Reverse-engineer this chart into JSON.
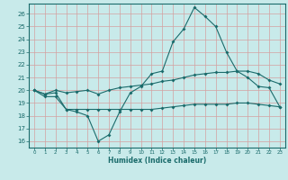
{
  "title": "",
  "xlabel": "Humidex (Indice chaleur)",
  "bg_color": "#c8eaea",
  "line_color": "#1a6b6b",
  "grid_color": "#d4a0a0",
  "xlim": [
    -0.5,
    23.5
  ],
  "ylim": [
    15.5,
    26.8
  ],
  "yticks": [
    16,
    17,
    18,
    19,
    20,
    21,
    22,
    23,
    24,
    25,
    26
  ],
  "xticks": [
    0,
    1,
    2,
    3,
    4,
    5,
    6,
    7,
    8,
    9,
    10,
    11,
    12,
    13,
    14,
    15,
    16,
    17,
    18,
    19,
    20,
    21,
    22,
    23
  ],
  "line1_x": [
    0,
    1,
    2,
    3,
    4,
    5,
    6,
    7,
    8,
    9,
    10,
    11,
    12,
    13,
    14,
    15,
    16,
    17,
    18,
    19,
    20,
    21,
    22,
    23
  ],
  "line1_y": [
    20.0,
    19.5,
    19.5,
    18.5,
    18.3,
    18.0,
    16.0,
    16.5,
    18.3,
    19.8,
    20.3,
    21.3,
    21.5,
    23.8,
    24.8,
    26.5,
    25.8,
    25.0,
    23.0,
    21.5,
    21.0,
    20.3,
    20.2,
    18.7
  ],
  "line2_x": [
    0,
    1,
    2,
    3,
    4,
    5,
    6,
    7,
    8,
    9,
    10,
    11,
    12,
    13,
    14,
    15,
    16,
    17,
    18,
    19,
    20,
    21,
    22,
    23
  ],
  "line2_y": [
    20.0,
    19.7,
    20.0,
    19.8,
    19.9,
    20.0,
    19.7,
    20.0,
    20.2,
    20.3,
    20.4,
    20.5,
    20.7,
    20.8,
    21.0,
    21.2,
    21.3,
    21.4,
    21.4,
    21.5,
    21.5,
    21.3,
    20.8,
    20.5
  ],
  "line3_x": [
    0,
    1,
    2,
    3,
    4,
    5,
    6,
    7,
    8,
    9,
    10,
    11,
    12,
    13,
    14,
    15,
    16,
    17,
    18,
    19,
    20,
    21,
    22,
    23
  ],
  "line3_y": [
    20.0,
    19.7,
    19.8,
    18.5,
    18.5,
    18.5,
    18.5,
    18.5,
    18.5,
    18.5,
    18.5,
    18.5,
    18.6,
    18.7,
    18.8,
    18.9,
    18.9,
    18.9,
    18.9,
    19.0,
    19.0,
    18.9,
    18.8,
    18.7
  ]
}
